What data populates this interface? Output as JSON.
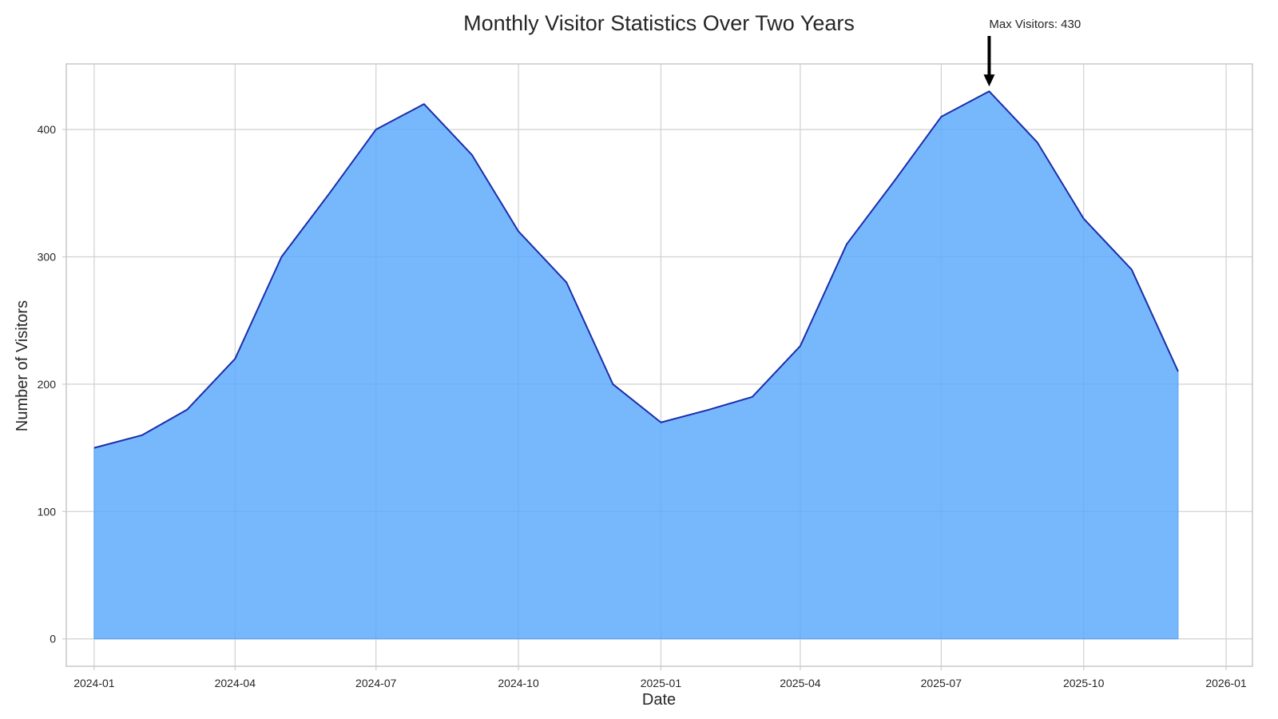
{
  "chart_data": {
    "type": "area",
    "title": "Monthly Visitor Statistics Over Two Years",
    "xlabel": "Date",
    "ylabel": "Number of Visitors",
    "x": [
      "2024-01",
      "2024-02",
      "2024-03",
      "2024-04",
      "2024-05",
      "2024-06",
      "2024-07",
      "2024-08",
      "2024-09",
      "2024-10",
      "2024-11",
      "2024-12",
      "2025-01",
      "2025-02",
      "2025-03",
      "2025-04",
      "2025-05",
      "2025-06",
      "2025-07",
      "2025-08",
      "2025-09",
      "2025-10",
      "2025-11",
      "2025-12"
    ],
    "series": [
      {
        "values": [
          150,
          160,
          180,
          220,
          300,
          350,
          400,
          420,
          380,
          320,
          280,
          200,
          170,
          180,
          190,
          230,
          310,
          360,
          410,
          430,
          390,
          330,
          290,
          210
        ]
      }
    ],
    "xticks": [
      "2024-01",
      "2024-04",
      "2024-07",
      "2024-10",
      "2025-01",
      "2025-04",
      "2025-07",
      "2025-10",
      "2026-01"
    ],
    "yticks": [
      0,
      100,
      200,
      300,
      400
    ],
    "xlim": [
      "2023-12-14",
      "2026-01-18"
    ],
    "ylim": [
      -21.5,
      451.5
    ],
    "grid": true,
    "annotation": {
      "text": "Max Visitors: 430",
      "x": "2025-08",
      "y": 430
    },
    "colors": {
      "fill": "#77b8fd",
      "line": "#1a2dab",
      "grid": "#d0d0d0",
      "spine": "#cccccc",
      "arrow": "#000000"
    }
  }
}
